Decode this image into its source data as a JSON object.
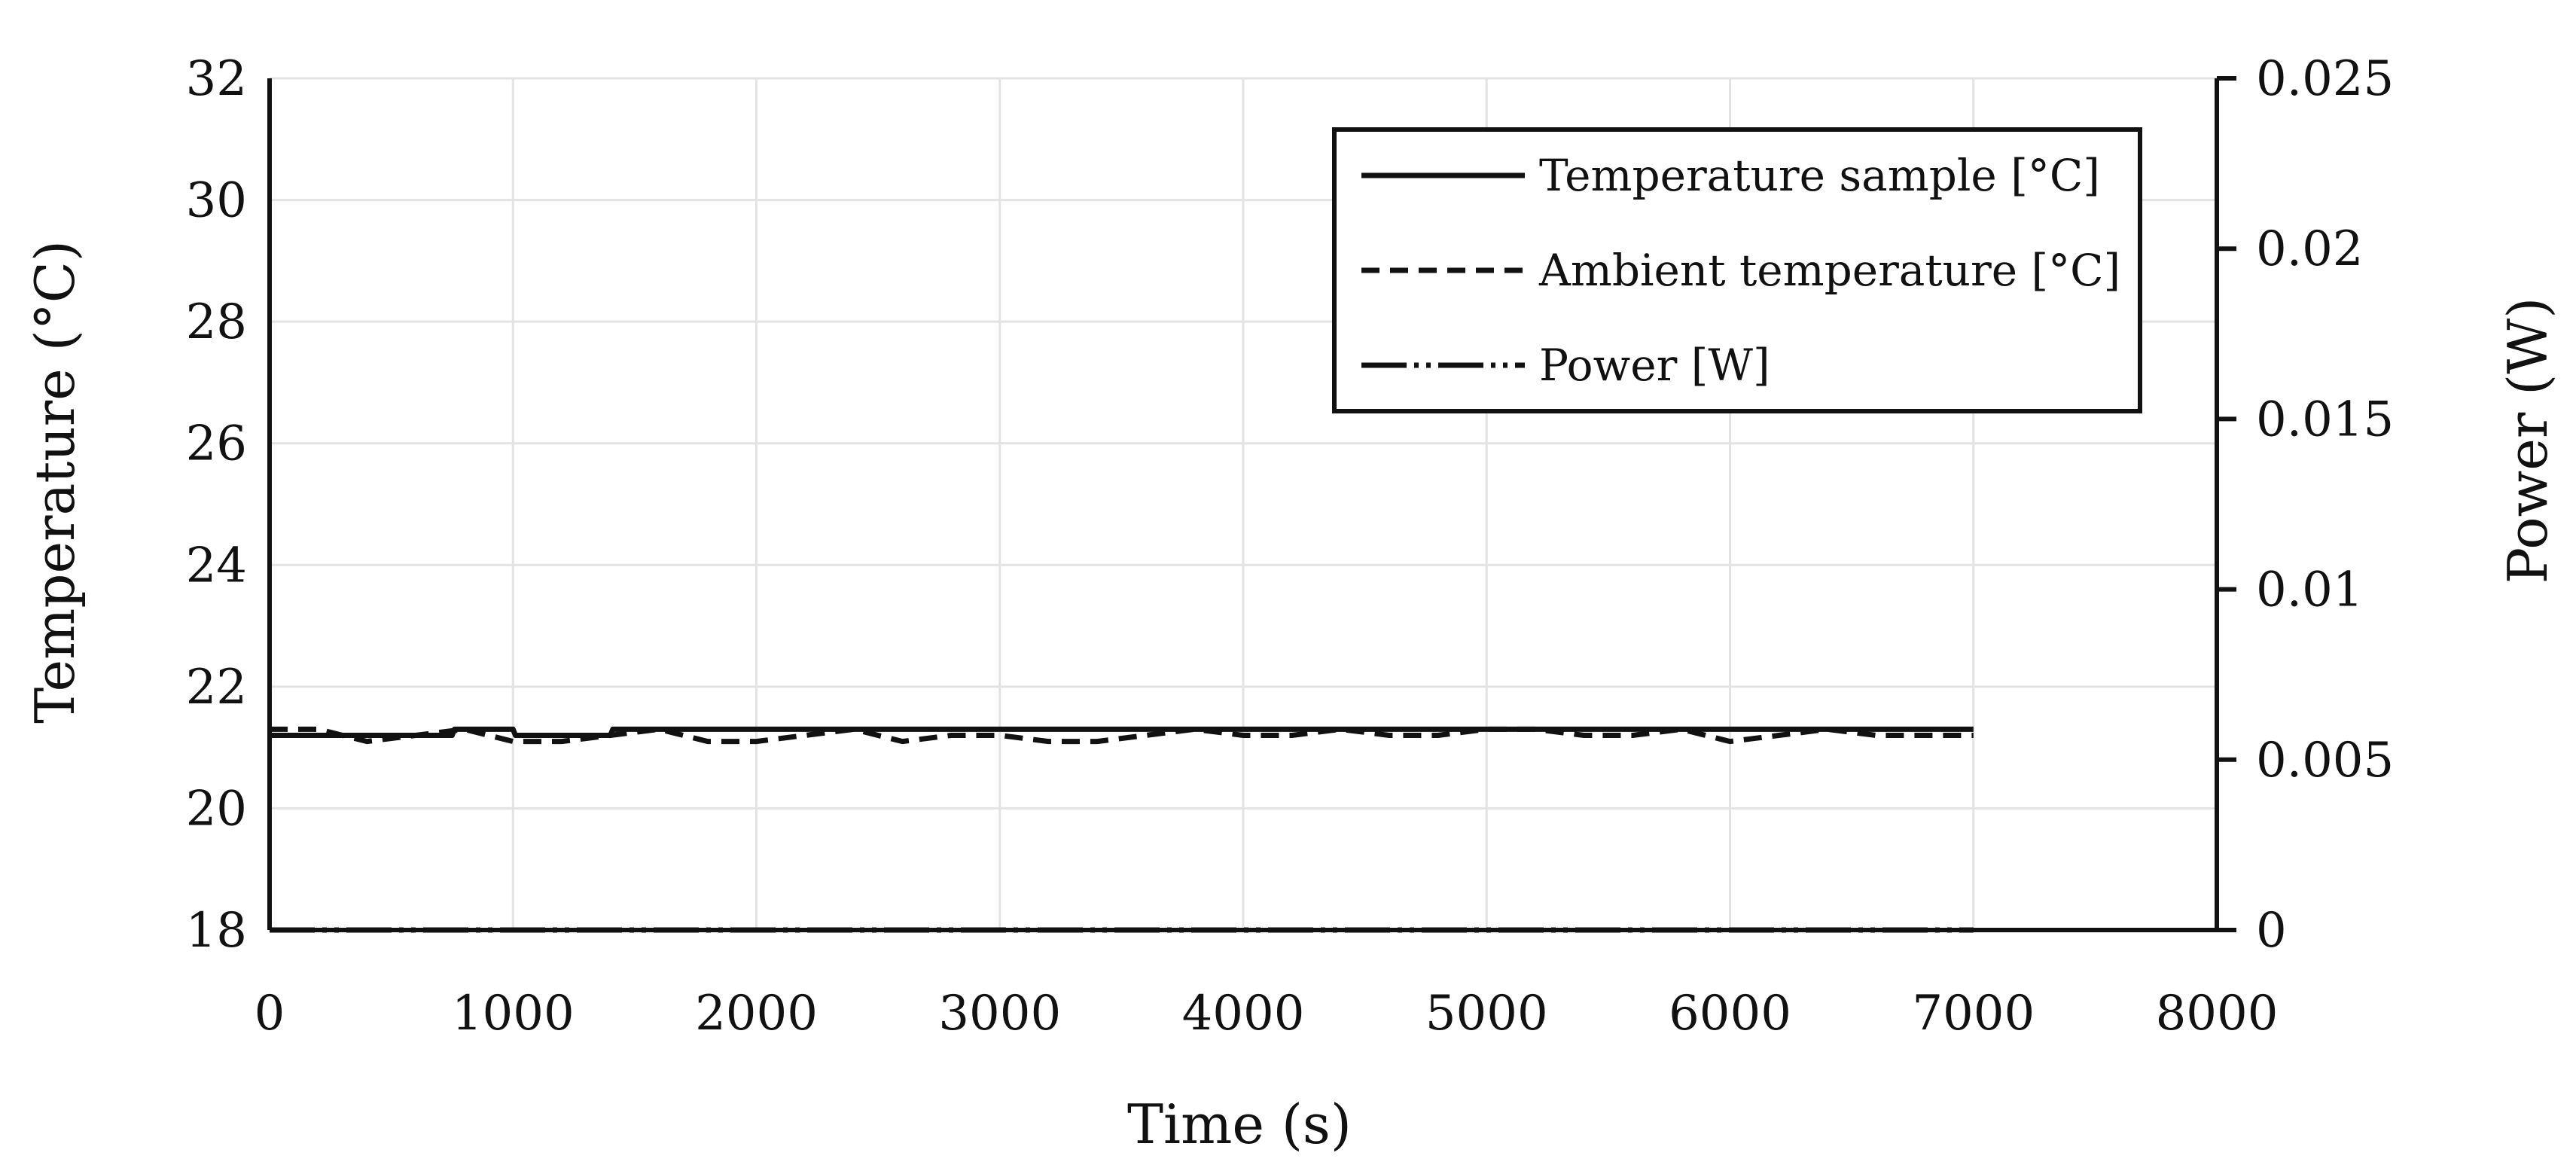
{
  "chart_data": {
    "type": "line",
    "xlabel": "Time (s)",
    "ylabel_left": "Temperature (°C)",
    "ylabel_right": "Power (W)",
    "xlim": [
      0,
      8000
    ],
    "ylim_left": [
      18,
      32
    ],
    "ylim_right": [
      0,
      0.025
    ],
    "x_ticks": [
      "0",
      "1000",
      "2000",
      "3000",
      "4000",
      "5000",
      "6000",
      "7000",
      "8000"
    ],
    "y_left_ticks": [
      "18",
      "20",
      "22",
      "24",
      "26",
      "28",
      "30",
      "32"
    ],
    "y_right_ticks": [
      "0",
      "0.005",
      "0.01",
      "0.015",
      "0.02",
      "0.025"
    ],
    "grid": true,
    "legend_position": "top-right",
    "series": [
      {
        "name": "Temperature sample [°C]",
        "axis": "left",
        "style": "solid",
        "x": [
          0,
          750,
          760,
          1000,
          1010,
          1400,
          1410,
          7000
        ],
        "values": [
          21.2,
          21.2,
          21.3,
          21.3,
          21.2,
          21.2,
          21.3,
          21.3
        ]
      },
      {
        "name": "Ambient temperature [°C]",
        "axis": "left",
        "style": "dashed",
        "x": [
          0,
          200,
          400,
          600,
          800,
          1000,
          1200,
          1400,
          1600,
          1800,
          2000,
          2200,
          2400,
          2600,
          2800,
          3000,
          3200,
          3400,
          3600,
          3800,
          4000,
          4200,
          4400,
          4600,
          4800,
          5000,
          5200,
          5400,
          5600,
          5800,
          6000,
          6200,
          6400,
          6600,
          6800,
          7000
        ],
        "values": [
          21.3,
          21.3,
          21.1,
          21.2,
          21.3,
          21.1,
          21.1,
          21.2,
          21.3,
          21.1,
          21.1,
          21.2,
          21.3,
          21.1,
          21.2,
          21.2,
          21.1,
          21.1,
          21.2,
          21.3,
          21.2,
          21.2,
          21.3,
          21.2,
          21.2,
          21.3,
          21.3,
          21.2,
          21.2,
          21.3,
          21.1,
          21.2,
          21.3,
          21.2,
          21.2,
          21.2
        ]
      },
      {
        "name": "Power [W]",
        "axis": "right",
        "style": "dash-dot-dot",
        "x": [
          0,
          7000
        ],
        "values": [
          0,
          0
        ]
      }
    ]
  }
}
